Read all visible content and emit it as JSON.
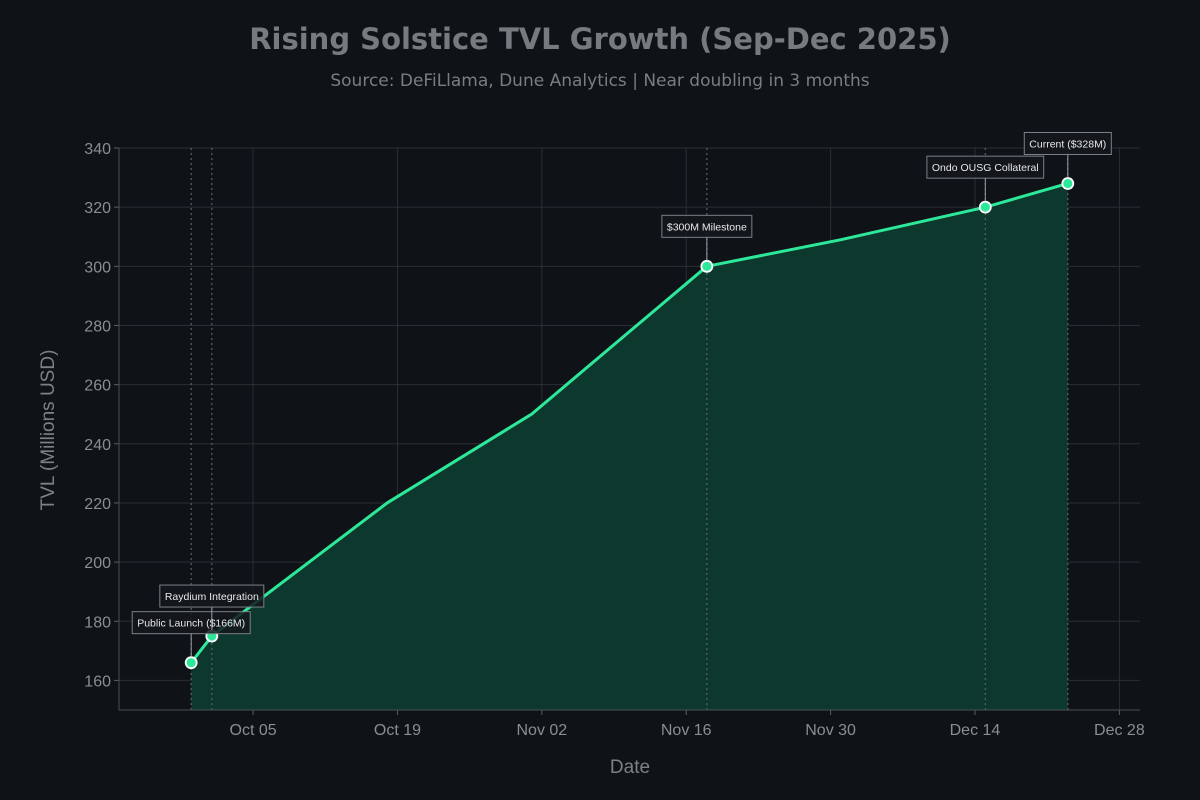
{
  "header": {
    "title": "Rising Solstice TVL Growth (Sep-Dec 2025)",
    "subtitle": "Source: DeFiLlama, Dune Analytics | Near doubling in 3 months"
  },
  "colors": {
    "background": "#0f1317",
    "line": "#2ee89a",
    "fill": "#0d3a2e",
    "grid": "#2a2f35",
    "text": "#8a8e93"
  },
  "chart_data": {
    "type": "area",
    "xlabel": "Date",
    "ylabel": "TVL (Millions USD)",
    "ylim": [
      150,
      340
    ],
    "xlim": [
      "2025-09-22",
      "2025-12-30"
    ],
    "grid": true,
    "x_ticks": [
      "Oct 05",
      "Oct 19",
      "Nov 02",
      "Nov 16",
      "Nov 30",
      "Dec 14",
      "Dec 28"
    ],
    "x_tick_dates": [
      "2025-10-05",
      "2025-10-19",
      "2025-11-02",
      "2025-11-16",
      "2025-11-30",
      "2025-12-14",
      "2025-12-28"
    ],
    "y_ticks": [
      160,
      180,
      200,
      220,
      240,
      260,
      280,
      300,
      320,
      340
    ],
    "series": [
      {
        "x": [
          "2025-09-29",
          "2025-10-01",
          "2025-10-04",
          "2025-10-18",
          "2025-11-01",
          "2025-11-18",
          "2025-12-01",
          "2025-12-15",
          "2025-12-23"
        ],
        "values": [
          166,
          175,
          183,
          220,
          250,
          300,
          309,
          320,
          328
        ]
      }
    ],
    "annotations": [
      {
        "label": "Public Launch ($166M)",
        "x": "2025-09-29",
        "y": 166
      },
      {
        "label": "Raydium Integration",
        "x": "2025-10-01",
        "y": 175
      },
      {
        "label": "$300M Milestone",
        "x": "2025-11-18",
        "y": 300
      },
      {
        "label": "Ondo OUSG Collateral",
        "x": "2025-12-15",
        "y": 320
      },
      {
        "label": "Current ($328M)",
        "x": "2025-12-23",
        "y": 328
      }
    ]
  }
}
